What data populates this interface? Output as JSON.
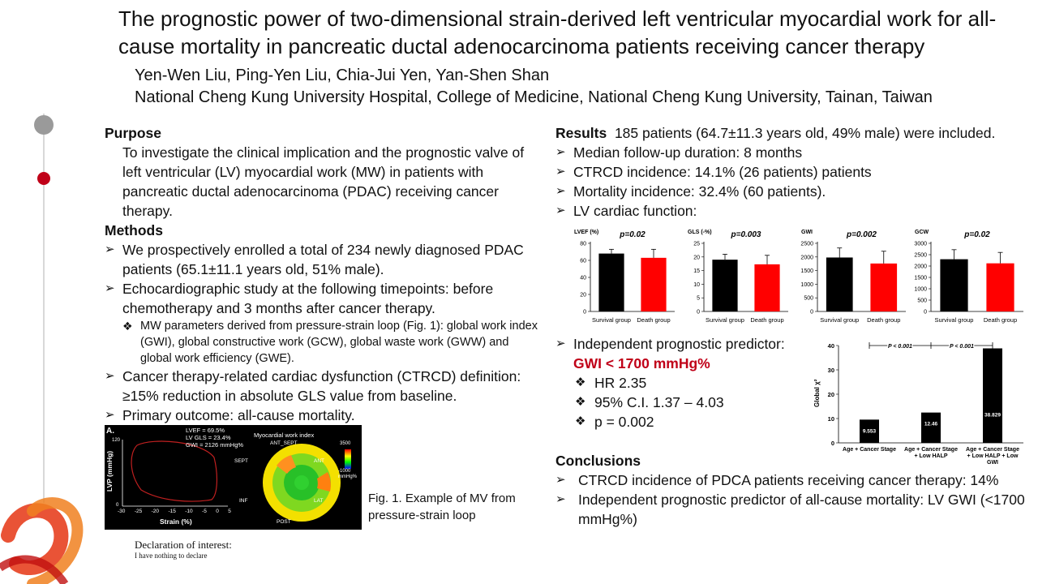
{
  "header": {
    "title": "The prognostic power of two-dimensional strain-derived left ventricular myocardial work for all-cause mortality in pancreatic ductal adenocarcinoma patients receiving cancer therapy",
    "authors": "Yen-Wen Liu, Ping-Yen Liu, Chia-Jui Yen, Yan-Shen Shan",
    "institution": "National Cheng Kung University Hospital, College of Medicine, National Cheng Kung University, Tainan, Taiwan"
  },
  "left": {
    "purpose_heading": "Purpose",
    "purpose_text": "To investigate the clinical implication and the prognostic valve of left ventricular (LV) myocardial work (MW) in patients with pancreatic ductal adenocarcinoma (PDAC) receiving cancer therapy.",
    "methods_heading": "Methods",
    "methods": [
      "We prospectively enrolled a total of 234 newly diagnosed PDAC patients (65.1±11.1 years old, 51% male).",
      "Echocardiographic study at the following timepoints: before chemotherapy and 3 months after cancer therapy."
    ],
    "methods_sub": "MW parameters derived from pressure-strain loop (Fig. 1): global work index (GWI), global constructive work (GCW), global waste work (GWW) and global work efficiency (GWE).",
    "methods_more": [
      "Cancer therapy-related cardiac dysfunction (CTRCD) definition: ≥15% reduction in absolute GLS value from baseline.",
      "Primary outcome: all-cause mortality."
    ],
    "figure": {
      "panel_letter": "A.",
      "lvef": "LVEF = 69.5%",
      "gls": "LV GLS = 23.4%",
      "gwi": "GWI = 2126 mmHg%",
      "map_title": "Myocardial work index",
      "ylabel": "LVP (mmHg)",
      "xlabel": "Strain (%)",
      "y_top": "120",
      "y_zero": "0",
      "x_ticks": [
        "-30",
        "-25",
        "-20",
        "-15",
        "-10",
        "-5",
        "0",
        "5"
      ],
      "seg_ant_sept": "ANT_SEPT",
      "seg_ant": "ANT",
      "seg_sept": "SEPT",
      "seg_inf": "INF",
      "seg_lat": "LAT",
      "seg_post": "POST",
      "scale_top": "3500",
      "scale_bottom": "-1000",
      "scale_unit": "mmHg%",
      "caption": "Fig. 1. Example of MV from pressure-strain loop"
    },
    "declaration_title": "Declaration of interest:",
    "declaration_text": "I have nothing to declare"
  },
  "right": {
    "results_heading": "Results",
    "results_intro": "185 patients (64.7±11.3 years old, 49% male) were included.",
    "results": [
      "Median follow-up duration: 8 months",
      "CTRCD incidence: 14.1% (26 patients) patients",
      "Mortality incidence: 32.4% (60 patients).",
      "LV cardiac function:"
    ],
    "predictor_label": "Independent prognostic predictor:",
    "predictor_value": "GWI < 1700 mmHg%",
    "predictor_items": [
      "HR 2.35",
      "95% C.I. 1.37 – 4.03",
      "p = 0.002"
    ],
    "conclusions_heading": "Conclusions",
    "conclusions": [
      "CTRCD incidence of PDCA patients receiving cancer therapy: 14%",
      "Independent prognostic predictor of all-cause mortality: LV GWI (<1700 mmHg%)"
    ]
  },
  "colors": {
    "survival": "#000000",
    "death": "#ff0000",
    "accent": "#c00018"
  },
  "chart_data": [
    {
      "type": "bar",
      "ylabel": "LVEF (%)",
      "pvalue": "p=0.02",
      "categories": [
        "Survival group",
        "Death group"
      ],
      "values": [
        68,
        63
      ],
      "errors": [
        5,
        10
      ],
      "ylim": [
        0,
        80
      ],
      "yticks": [
        0,
        20,
        40,
        60,
        80
      ]
    },
    {
      "type": "bar",
      "ylabel": "GLS (-%)",
      "pvalue": "p=0.003",
      "categories": [
        "Survival group",
        "Death group"
      ],
      "values": [
        19,
        17.3
      ],
      "errors": [
        2,
        3.3
      ],
      "ylim": [
        0,
        25
      ],
      "yticks": [
        0,
        5,
        10,
        15,
        20,
        25
      ]
    },
    {
      "type": "bar",
      "ylabel": "GWI",
      "pvalue": "p=0.002",
      "categories": [
        "Survival group",
        "Death group"
      ],
      "values": [
        1980,
        1760
      ],
      "errors": [
        350,
        450
      ],
      "ylim": [
        0,
        2500
      ],
      "yticks": [
        0,
        500,
        1000,
        1500,
        2000,
        2500
      ]
    },
    {
      "type": "bar",
      "ylabel": "GCW",
      "pvalue": "p=0.02",
      "categories": [
        "Survival group",
        "Death group"
      ],
      "values": [
        2300,
        2120
      ],
      "errors": [
        420,
        480
      ],
      "ylim": [
        0,
        3000
      ],
      "yticks": [
        0,
        500,
        1000,
        1500,
        2000,
        2500,
        3000
      ]
    },
    {
      "type": "bar",
      "ylabel": "Global χ²",
      "categories": [
        "Age + Cancer Stage",
        "Age + Cancer Stage + Low HALP",
        "Age + Cancer Stage + Low HALP + Low GWI"
      ],
      "values": [
        9.553,
        12.46,
        38.829
      ],
      "value_labels": [
        "9.553",
        "12.46",
        "38.829"
      ],
      "ylim": [
        0,
        40
      ],
      "yticks": [
        0,
        10,
        20,
        30,
        40
      ],
      "annotations": [
        "P < 0.001",
        "P < 0.001"
      ]
    }
  ]
}
